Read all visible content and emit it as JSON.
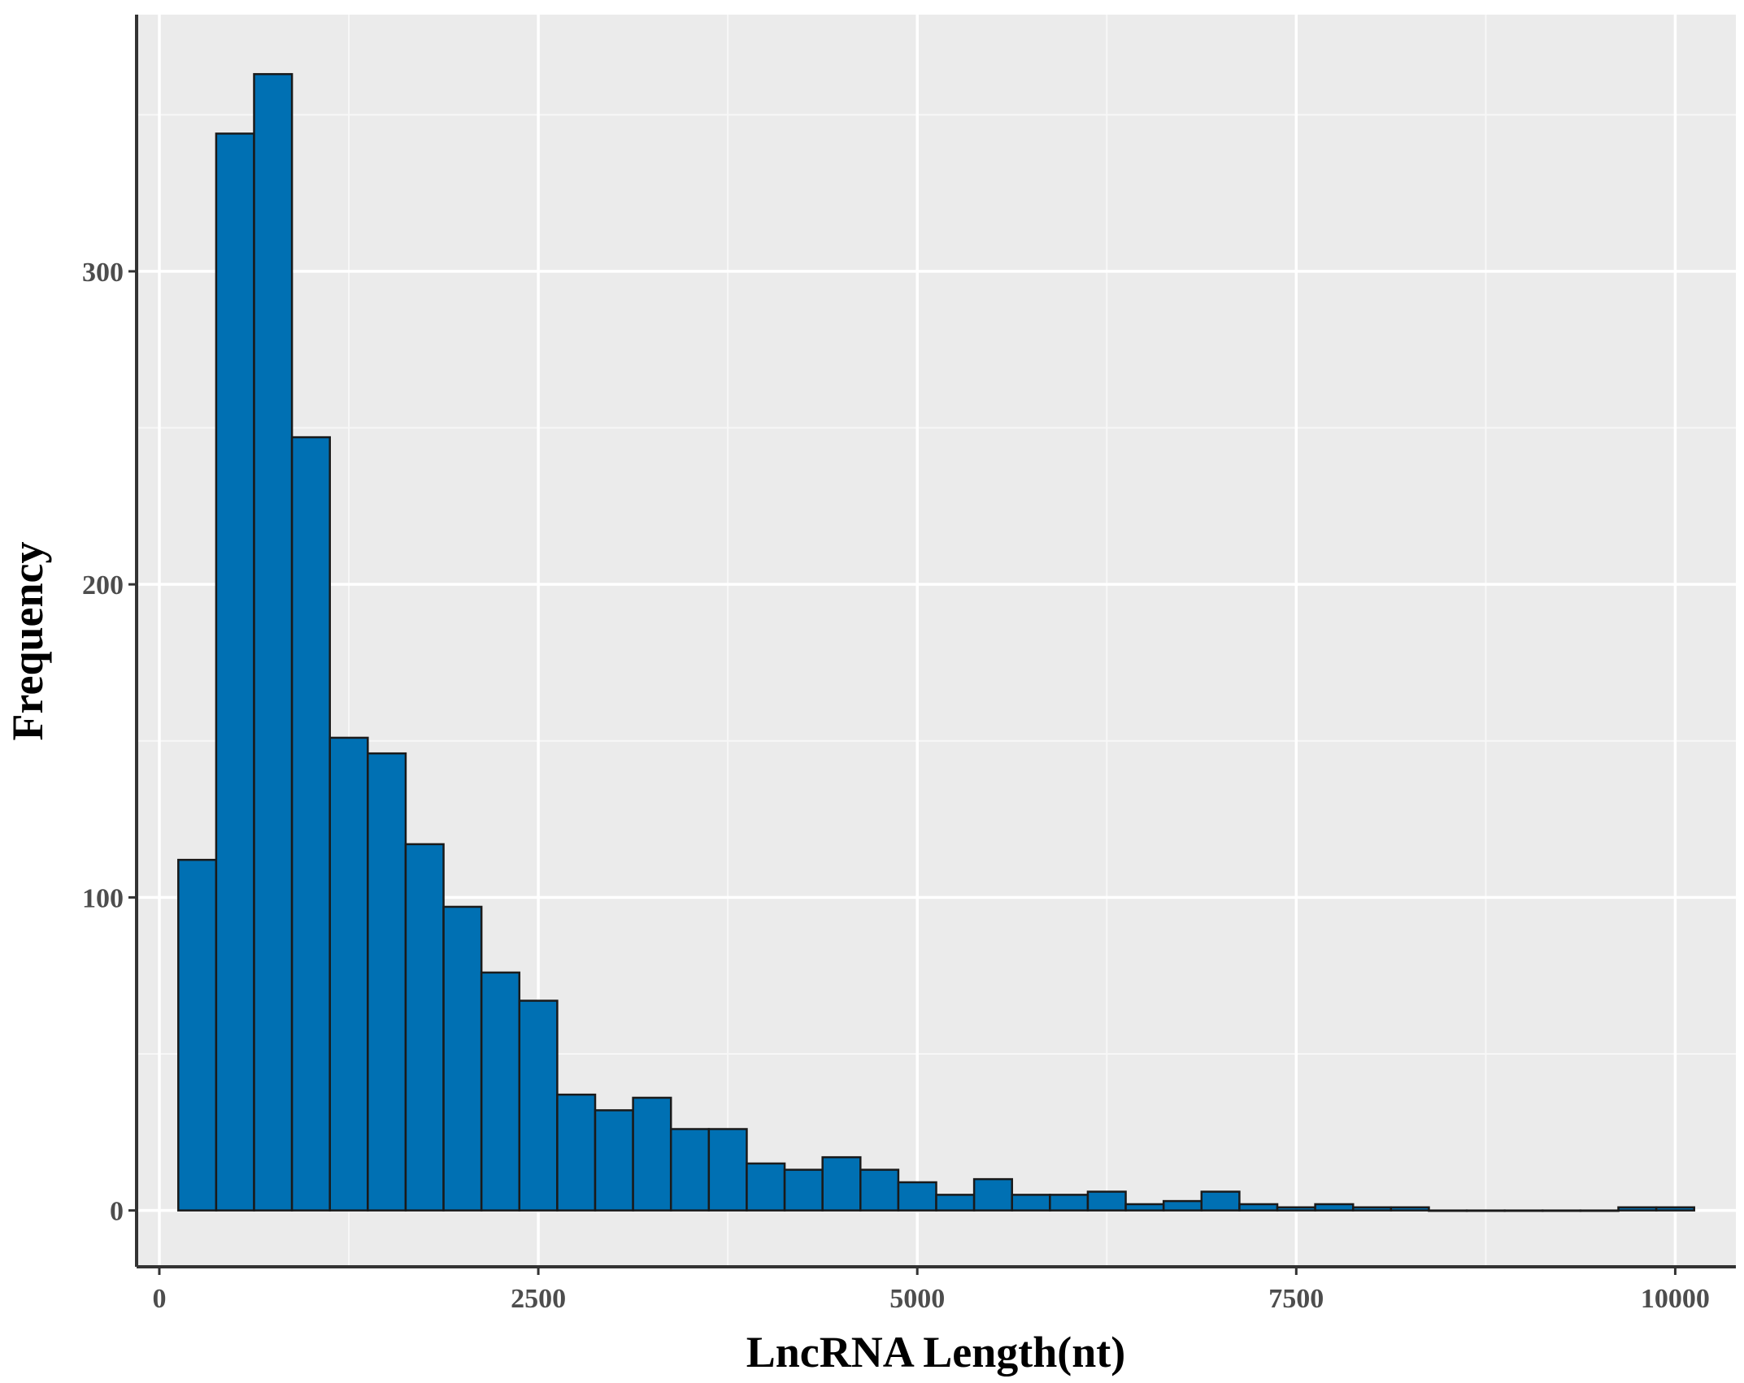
{
  "chart_data": {
    "type": "bar",
    "title": "",
    "xlabel": "LncRNA Length(nt)",
    "ylabel": "Frequency",
    "xlim": [
      -150,
      10400
    ],
    "ylim": [
      -18,
      382
    ],
    "x_ticks": [
      0,
      2500,
      5000,
      7500,
      10000
    ],
    "x_tick_labels": [
      "0",
      "2500",
      "5000",
      "7500",
      "10000"
    ],
    "y_ticks": [
      0,
      100,
      200,
      300
    ],
    "y_tick_labels": [
      "0",
      "100",
      "200",
      "300"
    ],
    "grid": true,
    "legend": "none",
    "bin_width": 250,
    "bin_start": 125,
    "values": [
      112,
      344,
      363,
      247,
      151,
      146,
      117,
      97,
      76,
      67,
      37,
      32,
      36,
      26,
      26,
      15,
      13,
      17,
      13,
      9,
      5,
      10,
      5,
      5,
      6,
      2,
      3,
      6,
      2,
      1,
      2,
      1,
      1,
      0,
      0,
      0,
      0,
      0,
      1,
      1
    ],
    "colors": {
      "bar_fill": "#0070b3",
      "bar_stroke": "#1a1a1a",
      "panel_background": "#ebebeb",
      "grid_major": "#ffffff",
      "grid_minor": "#f7f7f7",
      "axis_line": "#333333"
    }
  }
}
